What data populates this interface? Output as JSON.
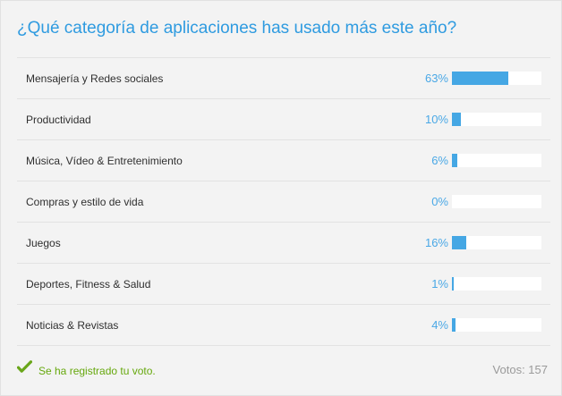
{
  "poll": {
    "title": "¿Qué categoría de aplicaciones has usado más este año?",
    "options": [
      {
        "label": "Mensajería y Redes sociales",
        "percent_text": "63%",
        "percent": 63
      },
      {
        "label": "Productividad",
        "percent_text": "10%",
        "percent": 10
      },
      {
        "label": "Música, Vídeo & Entretenimiento",
        "percent_text": "6%",
        "percent": 6
      },
      {
        "label": "Compras y estilo de vida",
        "percent_text": "0%",
        "percent": 0
      },
      {
        "label": "Juegos",
        "percent_text": "16%",
        "percent": 16
      },
      {
        "label": "Deportes, Fitness & Salud",
        "percent_text": "1%",
        "percent": 1
      },
      {
        "label": "Noticias & Revistas",
        "percent_text": "4%",
        "percent": 4
      }
    ]
  },
  "footer": {
    "message": "Se ha registrado tu voto.",
    "votes": "Votos: 157"
  },
  "icons": {
    "vote_registered": "check-icon"
  },
  "colors": {
    "title": "#2f9be0",
    "bar_fill": "#45a7e4",
    "percent": "#4aa8e6",
    "success": "#66a80d",
    "background": "#f3f3f3"
  }
}
